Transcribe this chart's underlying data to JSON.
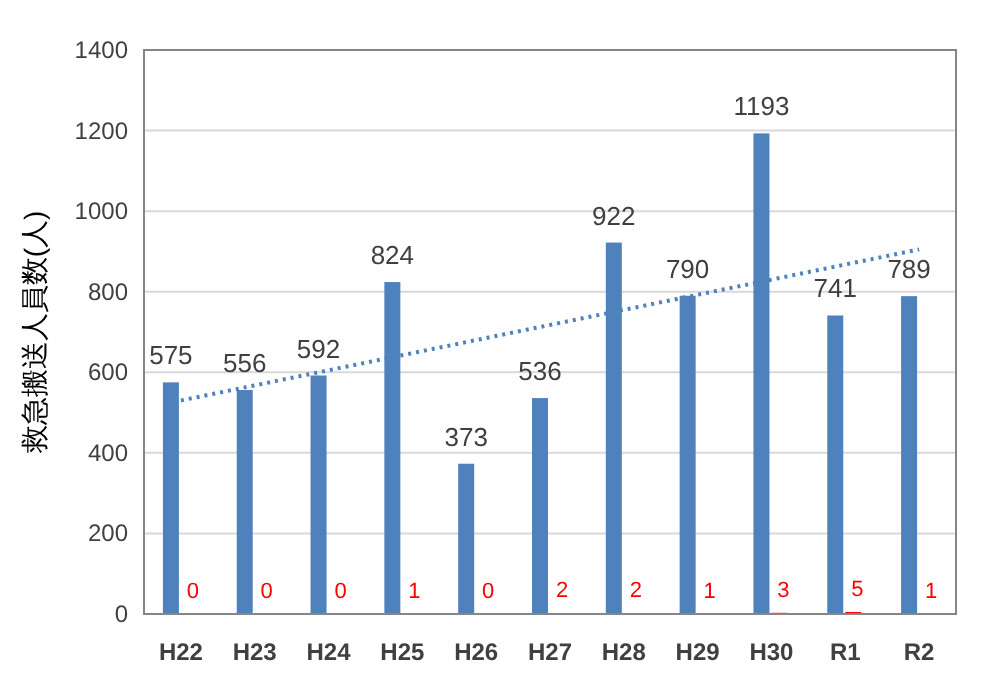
{
  "chart_data": {
    "type": "bar",
    "ylabel": "救急搬送人員数(人)",
    "categories": [
      "H22",
      "H23",
      "H24",
      "H25",
      "H26",
      "H27",
      "H28",
      "H29",
      "H30",
      "R1",
      "R2"
    ],
    "series": [
      {
        "color": "#4f81bd",
        "values": [
          575,
          556,
          592,
          824,
          373,
          536,
          922,
          790,
          1193,
          741,
          789
        ],
        "value_labels": [
          "575",
          "556",
          "592",
          "824",
          "373",
          "536",
          "922",
          "790",
          "1193",
          "741",
          "789"
        ]
      },
      {
        "color": "#ff0000",
        "values": [
          0,
          0,
          0,
          1,
          0,
          2,
          2,
          1,
          3,
          5,
          1
        ],
        "value_labels": [
          "0",
          "0",
          "0",
          "1",
          "0",
          "2",
          "2",
          "1",
          "3",
          "5",
          "1"
        ]
      },
      {
        "type": "line",
        "color": "#4f81bd",
        "line_style": "dotted",
        "x": [
          "H22",
          "R2"
        ],
        "values": [
          530,
          905
        ]
      }
    ],
    "ylim": [
      0,
      1400
    ],
    "yticks": [
      0,
      200,
      400,
      600,
      800,
      1000,
      1200,
      1400
    ],
    "grid": "y"
  }
}
